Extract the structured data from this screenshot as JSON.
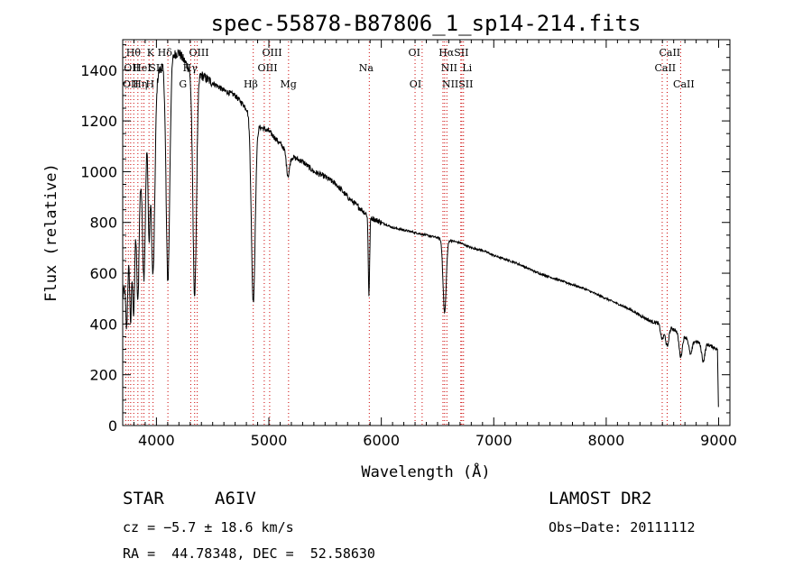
{
  "chart_data": {
    "type": "line",
    "title": "spec-55878-B87806_1_sp14-214.fits",
    "xlabel": "Wavelength (Å)",
    "ylabel": "Flux (relative)",
    "xlim": [
      3700,
      9100
    ],
    "ylim": [
      0,
      1520
    ],
    "x_ticks": [
      4000,
      5000,
      6000,
      7000,
      8000,
      9000
    ],
    "y_ticks": [
      0,
      200,
      400,
      600,
      800,
      1000,
      1200,
      1400
    ],
    "grid": false,
    "series": [
      {
        "name": "flux",
        "continuum": {
          "x": [
            3700,
            3800,
            3900,
            4000,
            4100,
            4200,
            4300,
            4400,
            4500,
            4600,
            4700,
            4800,
            4900,
            5000,
            5100,
            5200,
            5300,
            5400,
            5500,
            5600,
            5700,
            5800,
            5900,
            6000,
            6100,
            6200,
            6300,
            6400,
            6500,
            6600,
            6700,
            6800,
            6900,
            7000,
            7200,
            7400,
            7600,
            7800,
            8000,
            8200,
            8400,
            8500,
            8600,
            8700,
            8800,
            8900,
            8990,
            9000
          ],
          "y": [
            500,
            800,
            1100,
            1380,
            1450,
            1470,
            1400,
            1380,
            1350,
            1320,
            1300,
            1250,
            1180,
            1160,
            1110,
            1060,
            1040,
            1000,
            980,
            950,
            900,
            860,
            820,
            800,
            780,
            770,
            760,
            750,
            740,
            730,
            720,
            700,
            690,
            670,
            640,
            600,
            570,
            540,
            500,
            460,
            410,
            400,
            380,
            350,
            330,
            320,
            300,
            10
          ]
        },
        "absorption_lines": [
          {
            "x": 3735,
            "depth": 220,
            "width": 8
          },
          {
            "x": 3771,
            "depth": 300,
            "width": 8
          },
          {
            "x": 3798,
            "depth": 350,
            "width": 9
          },
          {
            "x": 3835,
            "depth": 420,
            "width": 10
          },
          {
            "x": 3889,
            "depth": 480,
            "width": 12
          },
          {
            "x": 3934,
            "depth": 420,
            "width": 8
          },
          {
            "x": 3970,
            "depth": 700,
            "width": 16
          },
          {
            "x": 4102,
            "depth": 880,
            "width": 16
          },
          {
            "x": 4340,
            "depth": 880,
            "width": 16
          },
          {
            "x": 4861,
            "depth": 720,
            "width": 17
          },
          {
            "x": 5170,
            "depth": 90,
            "width": 14
          },
          {
            "x": 5890,
            "depth": 310,
            "width": 6
          },
          {
            "x": 6563,
            "depth": 290,
            "width": 14
          },
          {
            "x": 8498,
            "depth": 60,
            "width": 14
          },
          {
            "x": 8542,
            "depth": 80,
            "width": 14
          },
          {
            "x": 8662,
            "depth": 90,
            "width": 14
          },
          {
            "x": 8750,
            "depth": 60,
            "width": 14
          },
          {
            "x": 8863,
            "depth": 70,
            "width": 14
          }
        ]
      }
    ],
    "line_markers": {
      "color": "#cc0000",
      "x": [
        3727,
        3750,
        3771,
        3798,
        3835,
        3869,
        3889,
        3934,
        3970,
        4102,
        4305,
        4340,
        4363,
        4861,
        4959,
        5007,
        5175,
        5893,
        6300,
        6363,
        6548,
        6563,
        6583,
        6707,
        6716,
        6731,
        8498,
        8542,
        8662
      ]
    },
    "line_labels": [
      {
        "text": "Hθ",
        "x": 3730,
        "row": 1
      },
      {
        "text": "K",
        "x": 3915,
        "row": 1
      },
      {
        "text": "Hδ",
        "x": 4010,
        "row": 1
      },
      {
        "text": "OIII",
        "x": 4290,
        "row": 1
      },
      {
        "text": "OIII",
        "x": 4940,
        "row": 1
      },
      {
        "text": "OI",
        "x": 6240,
        "row": 1
      },
      {
        "text": "HαSII",
        "x": 6510,
        "row": 1
      },
      {
        "text": "CaII",
        "x": 8470,
        "row": 1
      },
      {
        "text": "OII",
        "x": 3710,
        "row": 2
      },
      {
        "text": "HeI",
        "x": 3790,
        "row": 2
      },
      {
        "text": "SII",
        "x": 3935,
        "row": 2
      },
      {
        "text": "Hγ",
        "x": 4235,
        "row": 2
      },
      {
        "text": "OIII",
        "x": 4900,
        "row": 2
      },
      {
        "text": "Na",
        "x": 5800,
        "row": 2
      },
      {
        "text": "NII",
        "x": 6530,
        "row": 2
      },
      {
        "text": "Li",
        "x": 6720,
        "row": 2
      },
      {
        "text": "CaII",
        "x": 8430,
        "row": 2
      },
      {
        "text": "OII",
        "x": 3700,
        "row": 3
      },
      {
        "text": "Hη",
        "x": 3790,
        "row": 3
      },
      {
        "text": "H",
        "x": 3905,
        "row": 3
      },
      {
        "text": "G",
        "x": 4200,
        "row": 3
      },
      {
        "text": "Hβ",
        "x": 4775,
        "row": 3
      },
      {
        "text": "Mg",
        "x": 5100,
        "row": 3
      },
      {
        "text": "OI",
        "x": 6250,
        "row": 3
      },
      {
        "text": "NIISII",
        "x": 6540,
        "row": 3
      },
      {
        "text": "CaII",
        "x": 8595,
        "row": 3
      }
    ]
  },
  "info": {
    "class": "STAR",
    "subclass": "A6IV",
    "survey": "LAMOST DR2",
    "cz": "cz = −5.7 ± 18.6 km/s",
    "obs_date": "Obs−Date: 20111112",
    "coords": "RA =  44.78348, DEC =  52.58630"
  }
}
